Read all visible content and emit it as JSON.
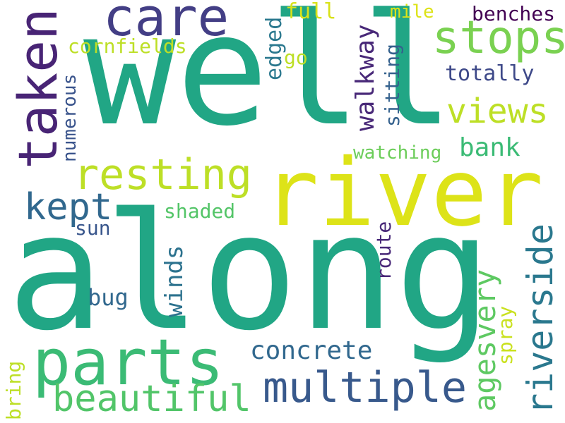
{
  "words": [
    {
      "text": "well",
      "color": "#21a685"
    },
    {
      "text": "along",
      "color": "#21a685"
    },
    {
      "text": "river",
      "color": "#dde318"
    },
    {
      "text": "taken",
      "color": "#482475"
    },
    {
      "text": "care",
      "color": "#433e85"
    },
    {
      "text": "stops",
      "color": "#7ad151"
    },
    {
      "text": "views",
      "color": "#bddf26"
    },
    {
      "text": "resting",
      "color": "#bddf26"
    },
    {
      "text": "parts",
      "color": "#3bbb75"
    },
    {
      "text": "multiple",
      "color": "#38598c"
    },
    {
      "text": "beautiful",
      "color": "#52c569"
    },
    {
      "text": "riverside",
      "color": "#2a788e"
    },
    {
      "text": "kept",
      "color": "#31688e"
    },
    {
      "text": "walkway",
      "color": "#482878"
    },
    {
      "text": "agesvery",
      "color": "#5ec962"
    },
    {
      "text": "concrete",
      "color": "#31688e"
    },
    {
      "text": "bank",
      "color": "#3bbb75"
    },
    {
      "text": "cornfields",
      "color": "#bddf26"
    },
    {
      "text": "totally",
      "color": "#3e4989"
    },
    {
      "text": "winds",
      "color": "#2c728e"
    },
    {
      "text": "shaded",
      "color": "#54c568"
    },
    {
      "text": "sun",
      "color": "#39568c"
    },
    {
      "text": "bug",
      "color": "#31688e"
    },
    {
      "text": "route",
      "color": "#482878"
    },
    {
      "text": "edged",
      "color": "#2a788e"
    },
    {
      "text": "full",
      "color": "#d8e219"
    },
    {
      "text": "go",
      "color": "#bddf26"
    },
    {
      "text": "mile",
      "color": "#dde318"
    },
    {
      "text": "benches",
      "color": "#440154"
    },
    {
      "text": "sitting",
      "color": "#34618d"
    },
    {
      "text": "watching",
      "color": "#6ccd5a"
    },
    {
      "text": "numerous",
      "color": "#3a548c"
    },
    {
      "text": "spray",
      "color": "#cae11f"
    },
    {
      "text": "bring",
      "color": "#bddf26"
    }
  ]
}
